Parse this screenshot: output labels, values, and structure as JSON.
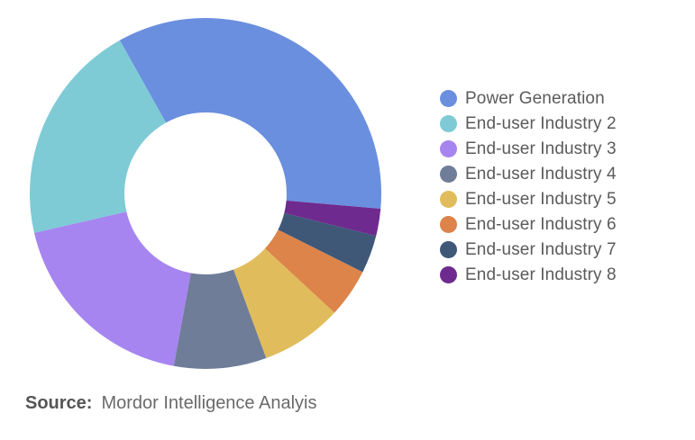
{
  "chart_data": {
    "type": "pie",
    "donut": true,
    "series": [
      {
        "name": "Power Generation",
        "value": 34.5,
        "color": "#6b8fdf"
      },
      {
        "name": "End-user Industry 2",
        "value": 20.5,
        "color": "#7ecbd6"
      },
      {
        "name": "End-user Industry 3",
        "value": 18.5,
        "color": "#a685f0"
      },
      {
        "name": "End-user Industry 4",
        "value": 8.5,
        "color": "#6f7d98"
      },
      {
        "name": "End-user Industry 5",
        "value": 7.5,
        "color": "#e0bc5c"
      },
      {
        "name": "End-user Industry 6",
        "value": 4.5,
        "color": "#dc844a"
      },
      {
        "name": "End-user Industry 7",
        "value": 3.5,
        "color": "#3f5878"
      },
      {
        "name": "End-user Industry 8",
        "value": 2.5,
        "color": "#6e2a8e"
      }
    ],
    "legend_position": "right"
  },
  "source": {
    "label": "Source:",
    "text": "Mordor Intelligence Analyis"
  }
}
